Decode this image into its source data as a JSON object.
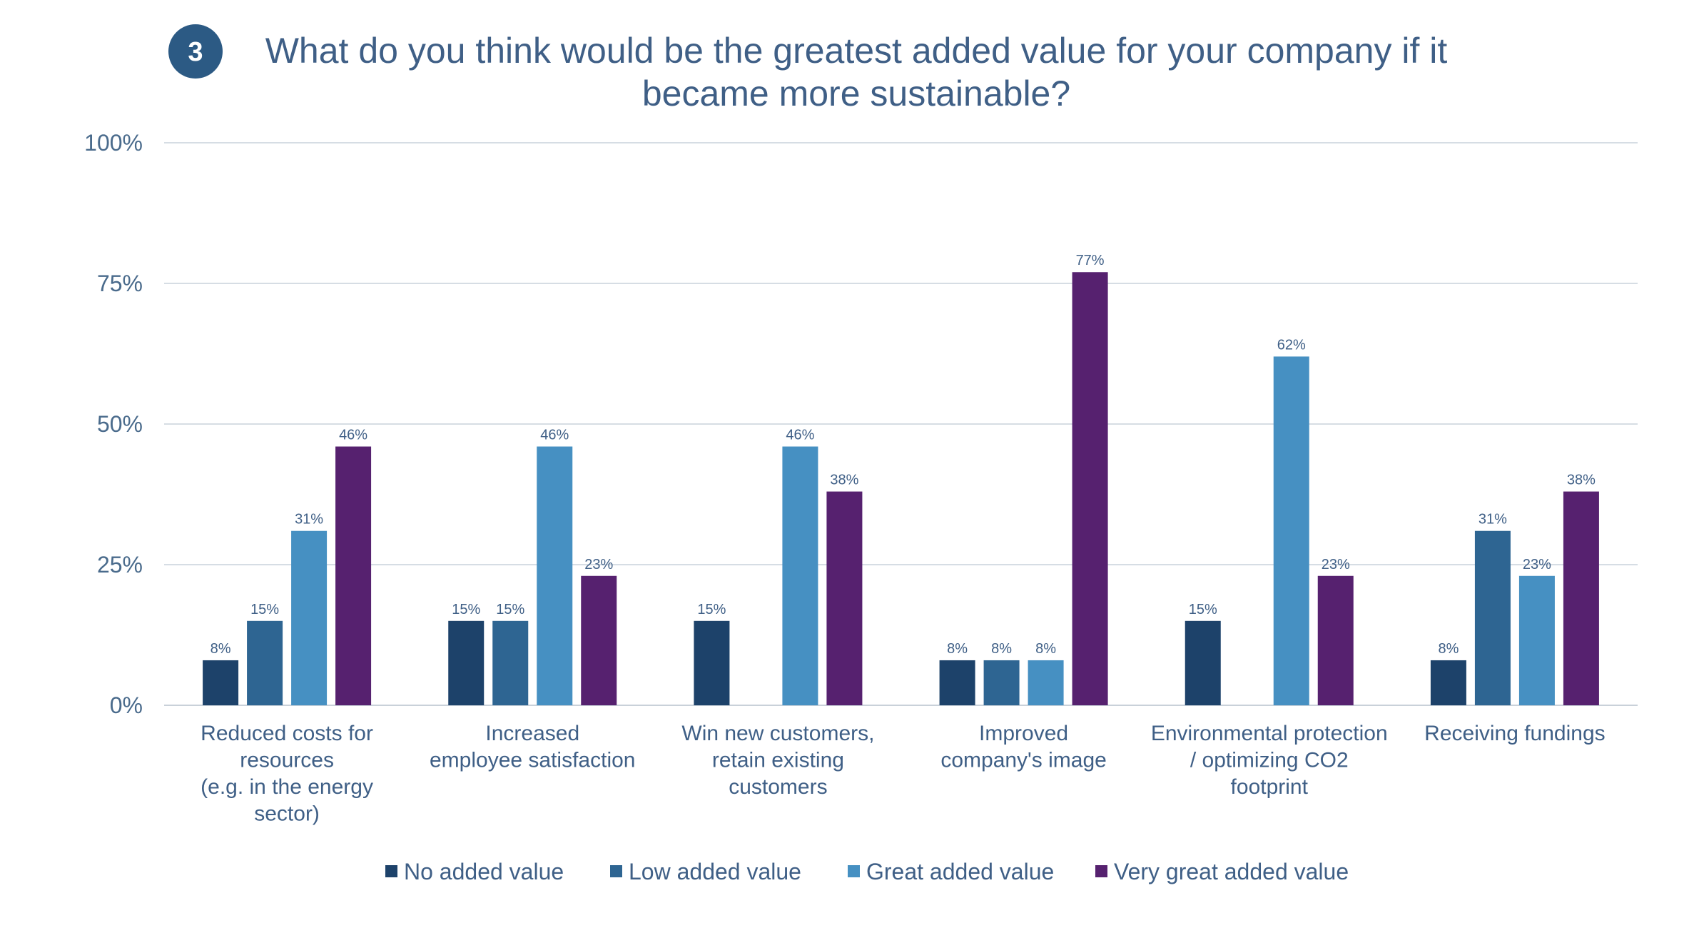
{
  "badge": "3",
  "title_lines": [
    "What do you think would be the greatest added value for your company if it",
    "became more sustainable?"
  ],
  "colors": {
    "title": "#3f5f86",
    "badge_bg": "#2c5a84",
    "grid": "#d6dde4"
  },
  "chart_data": {
    "type": "bar",
    "title": "What do you think would be the greatest added value for your company if it became more sustainable?",
    "xlabel": "",
    "ylabel": "",
    "ylim": [
      0,
      100
    ],
    "yticks": [
      {
        "value": 0,
        "label": "0%"
      },
      {
        "value": 25,
        "label": "25%"
      },
      {
        "value": 50,
        "label": "50%"
      },
      {
        "value": 75,
        "label": "75%"
      },
      {
        "value": 100,
        "label": "100%"
      }
    ],
    "grid": true,
    "legend_position": "bottom",
    "categories": [
      {
        "name": "Reduced costs for resources (e.g. in the energy sector)",
        "lines": [
          "Reduced costs for",
          "resources",
          "(e.g. in the energy",
          "sector)"
        ]
      },
      {
        "name": "Increased employee satisfaction",
        "lines": [
          "Increased",
          "employee satisfaction"
        ]
      },
      {
        "name": "Win new customers, retain existing customers",
        "lines": [
          "Win new customers,",
          "retain existing",
          "customers"
        ]
      },
      {
        "name": "Improved company's image",
        "lines": [
          "Improved",
          "company's image"
        ]
      },
      {
        "name": "Environmental protection / optimizing CO2 footprint",
        "lines": [
          "Environmental protection",
          "/ optimizing CO2",
          "footprint"
        ]
      },
      {
        "name": "Receiving fundings",
        "lines": [
          "Receiving fundings"
        ]
      }
    ],
    "series": [
      {
        "name": "No added value",
        "color": "#1d426a",
        "values": [
          8,
          15,
          15,
          8,
          15,
          8
        ]
      },
      {
        "name": "Low added value",
        "color": "#2e6592",
        "values": [
          15,
          15,
          0,
          8,
          0,
          31
        ]
      },
      {
        "name": "Great added value",
        "color": "#4690c2",
        "values": [
          31,
          46,
          46,
          8,
          62,
          23
        ]
      },
      {
        "name": "Very great added value",
        "color": "#56216f",
        "values": [
          46,
          23,
          38,
          77,
          23,
          38
        ]
      }
    ]
  }
}
